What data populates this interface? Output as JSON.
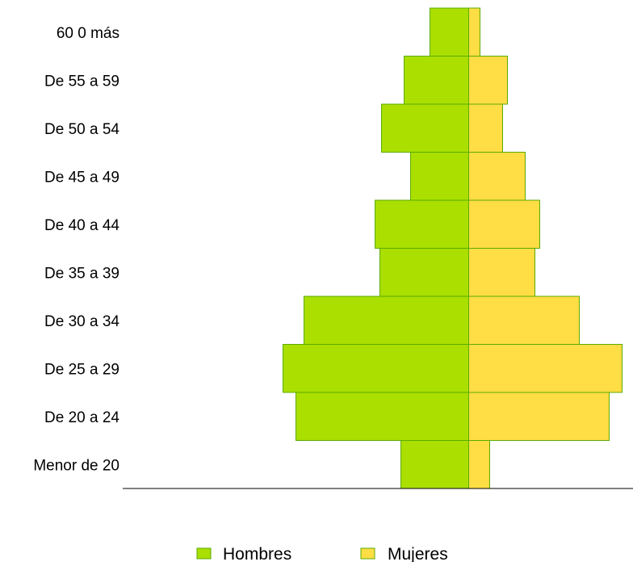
{
  "chart_data": {
    "type": "bar",
    "orientation": "horizontal",
    "layout": "population-pyramid",
    "categories": [
      "60 0 más",
      "De 55 a 59",
      "De 50 a  54",
      "De 45 a 49",
      "De 40 a 44",
      "De 35 a 39",
      "De 30 a 34",
      "De 25 a 29",
      "De 20 a 24",
      "Menor de 20"
    ],
    "series": [
      {
        "name": "Hombres",
        "side": "left",
        "color": "#aadf00",
        "stroke": "#5bab00",
        "values": [
          48,
          80,
          108,
          72,
          116,
          110,
          204,
          230,
          214,
          84
        ]
      },
      {
        "name": "Mujeres",
        "side": "right",
        "color": "#ffdd44",
        "stroke": "#5bab00",
        "values": [
          14,
          48,
          42,
          70,
          88,
          82,
          137,
          190,
          174,
          26
        ]
      }
    ],
    "title": "",
    "xlabel": "",
    "ylabel": "",
    "grid": false,
    "axis_ticks_visible": false,
    "legend": {
      "position": "bottom",
      "entries": [
        "Hombres",
        "Mujeres"
      ]
    }
  }
}
